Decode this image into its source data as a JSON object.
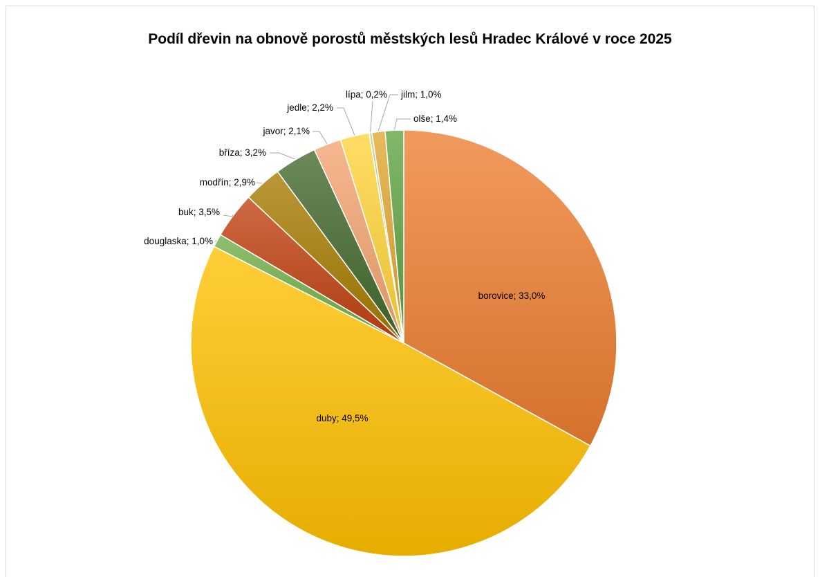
{
  "chart_data": {
    "type": "pie",
    "title": "Podíl dřevin na obnově porostů městských lesů Hradec Králové v roce 2025",
    "slices": [
      {
        "name": "borovice",
        "value": 33.0,
        "label": "borovice; 33,0%",
        "color": "#ED7D31"
      },
      {
        "name": "duby",
        "value": 49.5,
        "label": "duby; 49,5%",
        "color": "#FFC000"
      },
      {
        "name": "douglaska",
        "value": 1.0,
        "label": "douglaska; 1,0%",
        "color": "#70AD47"
      },
      {
        "name": "buk",
        "value": 3.5,
        "label": "buk; 3,5%",
        "color": "#C0400F"
      },
      {
        "name": "modřín",
        "value": 2.9,
        "label": "modřín; 2,9%",
        "color": "#A67B00"
      },
      {
        "name": "bříza",
        "value": 3.2,
        "label": "bříza; 3,2%",
        "color": "#43682B"
      },
      {
        "name": "javor",
        "value": 2.1,
        "label": "javor; 2,1%",
        "color": "#F4A36F"
      },
      {
        "name": "jedle",
        "value": 2.2,
        "label": "jedle; 2,2%",
        "color": "#FFD43A"
      },
      {
        "name": "lípa",
        "value": 0.2,
        "label": "lípa; 0,2%",
        "color": "#A9D08E"
      },
      {
        "name": "jilm",
        "value": 1.0,
        "label": "jilm; 1,0%",
        "color": "#E0A630"
      },
      {
        "name": "olše",
        "value": 1.4,
        "label": "olše; 1,4%",
        "color": "#5EA343"
      }
    ]
  }
}
